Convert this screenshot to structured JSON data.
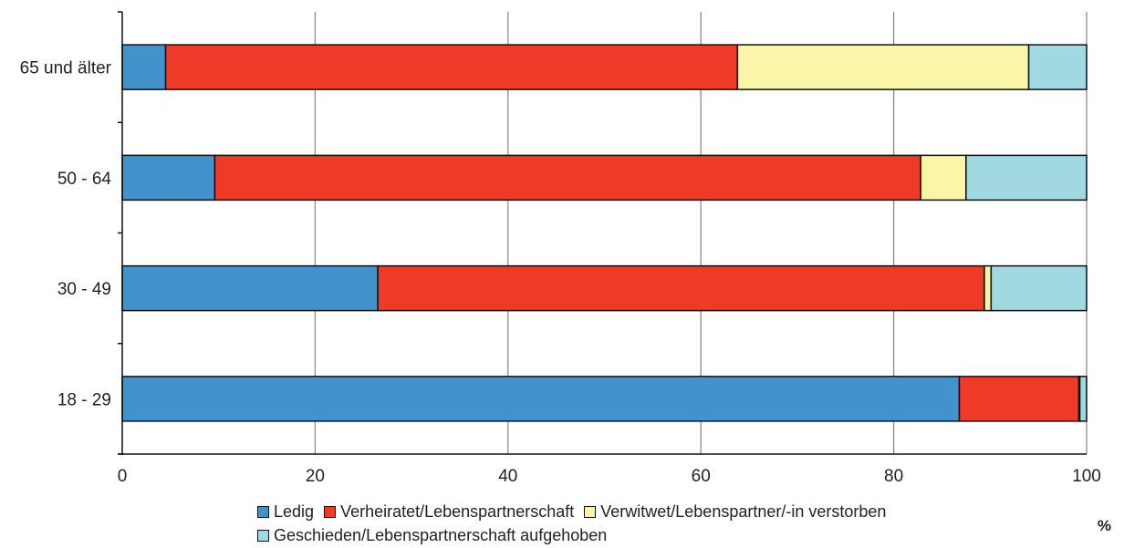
{
  "chart_data": {
    "type": "bar",
    "orientation": "horizontal",
    "stacked": true,
    "categories": [
      "65 und älter",
      "50 - 64",
      "30 - 49",
      "18 - 29"
    ],
    "series": [
      {
        "name": "Ledig",
        "color": "#4292cc",
        "values": [
          4.5,
          9.6,
          26.5,
          86.8
        ]
      },
      {
        "name": "Verheiratet/Lebenspartnerschaft",
        "color": "#ee3a27",
        "values": [
          59.3,
          73.2,
          62.9,
          12.4
        ]
      },
      {
        "name": "Verwitwet/Lebenspartner/-in verstorben",
        "color": "#fbf5a8",
        "values": [
          30.2,
          4.7,
          0.7,
          0.1
        ]
      },
      {
        "name": "Geschieden/Lebenspartnerschaft aufgehoben",
        "color": "#a1d9e3",
        "values": [
          6.0,
          12.5,
          9.9,
          0.7
        ]
      }
    ],
    "xlim": [
      0,
      100
    ],
    "xticks": [
      0,
      20,
      40,
      60,
      80,
      100
    ],
    "xunit": "%",
    "grid": "vertical",
    "legend_position": "bottom"
  }
}
